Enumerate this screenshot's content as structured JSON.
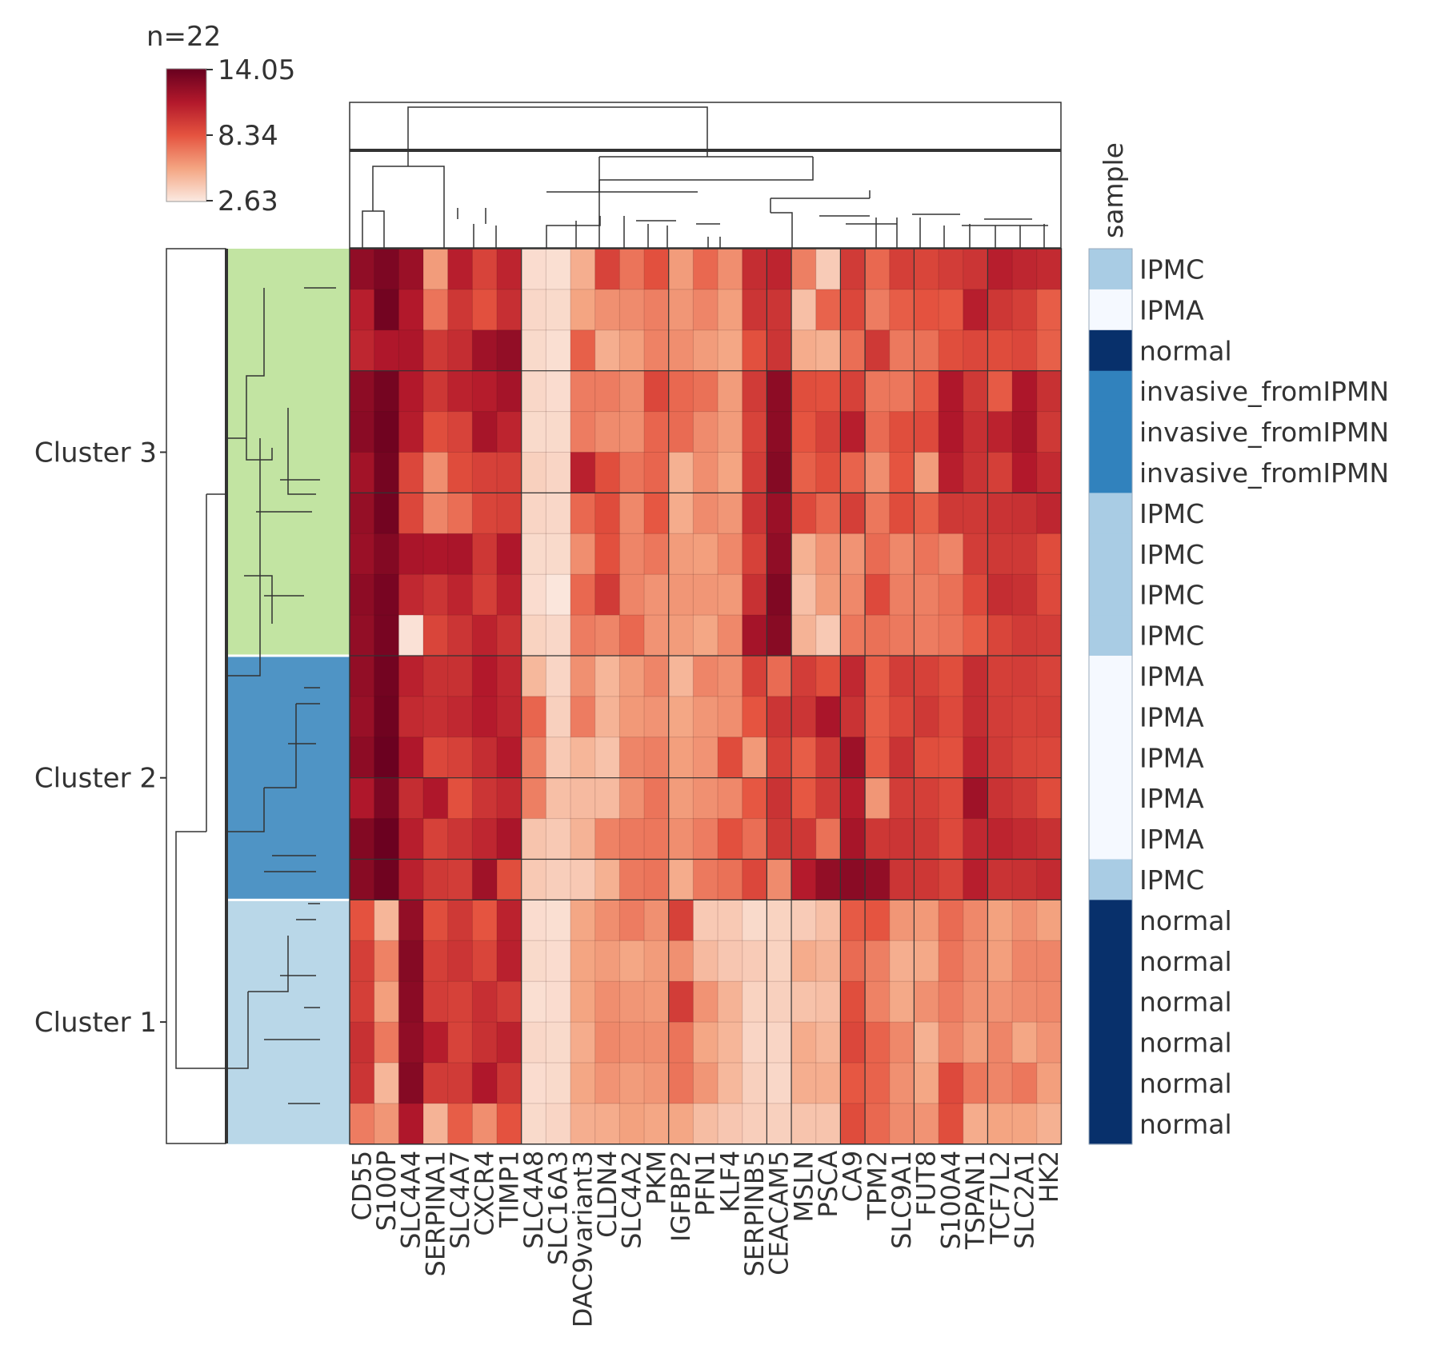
{
  "chart_data": {
    "type": "heatmap",
    "title": "n=22",
    "colorbar": {
      "max": 14.05,
      "mid": 8.34,
      "min": 2.63,
      "max_label": "14.05",
      "mid_label": "8.34",
      "min_label": "2.63",
      "colors": [
        "#fbeae2",
        "#f4a582",
        "#e5533f",
        "#b2182b",
        "#67001f"
      ]
    },
    "genes": [
      "CD55",
      "S100P",
      "SLC4A4",
      "SERPINA1",
      "SLC4A7",
      "CXCR4",
      "TIMP1",
      "SLC4A8",
      "SLC16A3",
      "DAC9variant3",
      "CLDN4",
      "SLC4A2",
      "PKM",
      "IGFBP2",
      "PFN1",
      "KLF4",
      "SERPINB5",
      "CEACAM5",
      "MSLN",
      "PSCA",
      "CA9",
      "TPM2",
      "SLC9A1",
      "FUT8",
      "S100A4",
      "TSPAN1",
      "TCF7L2",
      "SLC2A1",
      "HK2"
    ],
    "sample_header": "sample",
    "samples": [
      "IPMC",
      "IPMA",
      "normal",
      "invasive_fromIPMN",
      "invasive_fromIPMN",
      "invasive_fromIPMN",
      "IPMC",
      "IPMC",
      "IPMC",
      "IPMC",
      "IPMA",
      "IPMA",
      "IPMA",
      "IPMA",
      "IPMA",
      "IPMC",
      "normal",
      "normal",
      "normal",
      "normal",
      "normal",
      "normal"
    ],
    "sample_colors": {
      "IPMC": "#a9cce4",
      "IPMA": "#f5f9ff",
      "normal": "#08306b",
      "invasive_fromIPMN": "#3182bd"
    },
    "clusters": [
      {
        "label": "Cluster 3",
        "rows": [
          0,
          9
        ],
        "color": "#c2e4a2"
      },
      {
        "label": "Cluster 2",
        "rows": [
          10,
          15
        ],
        "color": "#4f94c5"
      },
      {
        "label": "Cluster 1",
        "rows": [
          16,
          21
        ],
        "color": "#b9d7e8"
      }
    ],
    "values": [
      [
        12.5,
        13.2,
        12.1,
        5.8,
        10.9,
        9.1,
        10.6,
        3.2,
        3.1,
        5.1,
        9.1,
        7.2,
        8.5,
        5.8,
        7.6,
        6.3,
        10.2,
        10.6,
        6.8,
        3.9,
        9.5,
        7.6,
        9.3,
        9.0,
        9.4,
        9.8,
        10.9,
        10.5,
        10.3
      ],
      [
        10.9,
        13.6,
        11.2,
        7.2,
        9.7,
        8.5,
        10.1,
        3.4,
        3.3,
        5.5,
        6.2,
        6.4,
        6.8,
        6.0,
        6.6,
        5.7,
        9.8,
        9.8,
        4.4,
        7.8,
        8.9,
        6.9,
        8.0,
        8.4,
        8.2,
        10.9,
        9.7,
        9.3,
        8.0
      ],
      [
        10.5,
        11.3,
        11.4,
        9.6,
        10.2,
        11.9,
        12.4,
        3.3,
        3.1,
        7.9,
        5.1,
        5.7,
        6.7,
        6.3,
        5.8,
        5.4,
        8.5,
        9.8,
        5.2,
        5.0,
        7.4,
        9.6,
        7.0,
        7.3,
        8.6,
        8.9,
        8.7,
        8.9,
        7.9
      ],
      [
        12.6,
        13.5,
        11.2,
        9.7,
        10.7,
        11.0,
        11.7,
        3.4,
        3.2,
        6.9,
        6.9,
        6.4,
        8.9,
        7.6,
        7.3,
        5.8,
        9.5,
        12.6,
        8.6,
        8.5,
        9.2,
        7.1,
        7.1,
        8.1,
        11.3,
        9.6,
        8.1,
        11.4,
        10.0
      ],
      [
        12.7,
        13.7,
        11.0,
        8.6,
        9.1,
        11.6,
        10.6,
        3.3,
        3.3,
        6.9,
        6.4,
        6.3,
        7.7,
        7.5,
        6.4,
        5.8,
        9.1,
        12.6,
        8.3,
        9.2,
        10.9,
        7.5,
        8.6,
        8.8,
        11.3,
        10.1,
        10.7,
        11.6,
        9.6
      ],
      [
        11.8,
        13.5,
        8.9,
        6.3,
        8.7,
        9.2,
        9.3,
        3.7,
        3.5,
        10.8,
        8.6,
        7.2,
        7.7,
        5.0,
        6.3,
        5.5,
        9.4,
        12.9,
        7.9,
        8.6,
        7.8,
        6.3,
        8.3,
        5.8,
        10.9,
        9.9,
        9.3,
        11.2,
        10.3
      ],
      [
        12.3,
        13.6,
        8.9,
        6.6,
        7.4,
        9.0,
        9.2,
        3.5,
        3.4,
        7.6,
        8.7,
        6.5,
        8.2,
        5.2,
        6.4,
        6.0,
        9.8,
        12.1,
        8.8,
        7.7,
        9.3,
        7.1,
        8.7,
        7.9,
        9.6,
        9.6,
        9.9,
        10.0,
        10.5
      ],
      [
        12.1,
        13.0,
        11.5,
        11.4,
        11.5,
        9.7,
        11.3,
        3.3,
        3.3,
        6.3,
        8.5,
        6.6,
        7.1,
        5.8,
        5.7,
        6.5,
        9.2,
        12.5,
        5.0,
        6.1,
        6.1,
        7.5,
        6.5,
        7.2,
        6.6,
        9.4,
        9.6,
        9.6,
        8.7
      ],
      [
        12.6,
        13.4,
        10.4,
        9.8,
        10.6,
        9.3,
        10.7,
        3.2,
        2.8,
        7.6,
        9.5,
        6.6,
        6.1,
        6.0,
        6.0,
        5.9,
        10.0,
        13.1,
        4.4,
        5.8,
        6.5,
        8.8,
        6.8,
        6.8,
        7.3,
        8.8,
        10.2,
        10.0,
        8.8
      ],
      [
        12.4,
        13.4,
        3.0,
        9.0,
        9.8,
        10.7,
        9.9,
        3.6,
        3.4,
        6.9,
        6.6,
        7.6,
        6.1,
        5.8,
        5.4,
        6.5,
        11.7,
        12.8,
        4.9,
        4.0,
        7.1,
        7.3,
        7.0,
        6.9,
        7.2,
        8.0,
        9.0,
        9.5,
        9.4
      ],
      [
        12.4,
        13.6,
        10.8,
        10.0,
        10.0,
        11.2,
        10.4,
        4.7,
        3.5,
        6.2,
        4.8,
        5.8,
        6.6,
        4.8,
        6.6,
        6.3,
        9.2,
        7.5,
        9.4,
        8.6,
        10.4,
        8.0,
        9.4,
        9.2,
        8.6,
        10.2,
        9.3,
        9.4,
        9.1
      ],
      [
        12.2,
        13.7,
        10.3,
        10.1,
        10.4,
        11.1,
        10.5,
        7.7,
        3.7,
        6.9,
        4.9,
        5.9,
        6.1,
        5.4,
        6.0,
        6.3,
        8.3,
        9.8,
        9.8,
        11.5,
        9.9,
        8.0,
        8.9,
        9.6,
        8.8,
        10.2,
        9.4,
        9.2,
        9.3
      ],
      [
        12.6,
        13.9,
        11.3,
        8.9,
        9.2,
        10.2,
        11.1,
        6.8,
        4.0,
        4.8,
        4.3,
        6.6,
        6.8,
        5.7,
        6.1,
        8.7,
        5.9,
        9.2,
        8.0,
        9.6,
        12.0,
        8.1,
        9.9,
        8.6,
        8.5,
        10.6,
        9.5,
        9.0,
        8.9
      ],
      [
        11.3,
        13.2,
        10.2,
        11.3,
        8.5,
        9.8,
        10.3,
        6.8,
        4.4,
        4.6,
        4.6,
        6.2,
        7.2,
        5.8,
        6.2,
        6.5,
        8.2,
        9.9,
        8.2,
        9.5,
        11.0,
        6.0,
        9.4,
        9.3,
        8.8,
        11.9,
        9.9,
        9.5,
        8.7
      ],
      [
        13.0,
        13.9,
        10.9,
        9.2,
        9.8,
        10.5,
        11.5,
        4.2,
        4.0,
        4.9,
        6.7,
        7.0,
        7.1,
        6.3,
        6.9,
        8.5,
        7.4,
        9.6,
        9.7,
        7.3,
        11.6,
        9.7,
        9.8,
        9.6,
        8.8,
        10.4,
        10.6,
        10.3,
        10.0
      ],
      [
        12.8,
        13.7,
        10.8,
        9.6,
        9.4,
        11.9,
        8.6,
        4.0,
        3.8,
        4.0,
        5.0,
        7.0,
        7.2,
        5.2,
        7.0,
        7.3,
        8.9,
        6.4,
        11.1,
        12.4,
        12.7,
        12.4,
        9.8,
        9.7,
        9.1,
        10.9,
        9.9,
        10.0,
        10.3
      ],
      [
        8.4,
        4.8,
        12.4,
        8.6,
        9.6,
        8.3,
        10.7,
        3.2,
        3.1,
        5.4,
        6.3,
        6.9,
        6.2,
        9.2,
        4.0,
        4.0,
        3.3,
        3.6,
        3.9,
        4.4,
        8.1,
        8.3,
        6.0,
        5.9,
        7.5,
        6.5,
        5.6,
        6.2,
        5.6
      ],
      [
        9.3,
        6.7,
        12.9,
        9.3,
        9.8,
        9.0,
        10.8,
        3.3,
        3.2,
        5.5,
        5.8,
        5.4,
        5.8,
        6.2,
        4.6,
        4.1,
        3.9,
        3.6,
        5.2,
        4.9,
        7.5,
        6.8,
        5.1,
        5.3,
        7.2,
        6.4,
        5.7,
        6.6,
        6.6
      ],
      [
        9.3,
        5.7,
        12.7,
        9.4,
        9.2,
        10.1,
        9.4,
        3.1,
        3.2,
        5.5,
        6.3,
        6.0,
        5.9,
        9.4,
        6.1,
        4.9,
        3.6,
        3.7,
        4.3,
        4.4,
        8.6,
        6.7,
        5.3,
        6.2,
        6.9,
        6.2,
        6.1,
        6.4,
        6.5
      ],
      [
        10.0,
        7.0,
        12.5,
        11.0,
        9.1,
        10.0,
        10.7,
        3.4,
        3.3,
        5.2,
        6.5,
        6.3,
        6.3,
        7.2,
        5.4,
        4.8,
        3.5,
        3.5,
        5.2,
        4.8,
        8.9,
        7.8,
        6.5,
        5.0,
        6.6,
        5.8,
        6.6,
        5.4,
        6.1
      ],
      [
        9.8,
        4.8,
        12.9,
        9.5,
        9.5,
        11.3,
        9.7,
        3.2,
        3.3,
        5.4,
        6.1,
        5.8,
        6.0,
        7.2,
        6.0,
        4.7,
        3.7,
        3.4,
        5.1,
        5.1,
        8.2,
        7.8,
        6.2,
        5.4,
        8.8,
        7.1,
        6.6,
        7.1,
        5.7
      ],
      [
        6.9,
        6.0,
        11.3,
        4.9,
        8.0,
        6.3,
        8.4,
        3.3,
        3.5,
        5.1,
        5.2,
        5.6,
        5.4,
        5.4,
        4.5,
        4.1,
        3.8,
        3.7,
        4.2,
        4.2,
        8.7,
        7.6,
        6.4,
        6.1,
        8.6,
        5.2,
        5.5,
        5.5,
        5.0
      ]
    ]
  }
}
